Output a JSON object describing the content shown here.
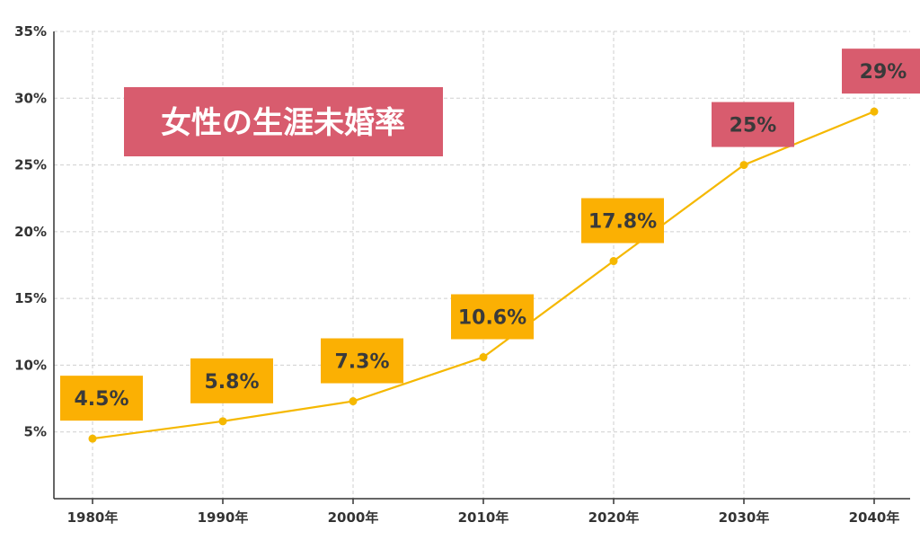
{
  "chart_data": {
    "type": "line",
    "title": "女性の生涯未婚率",
    "categories": [
      "1980年",
      "1990年",
      "2000年",
      "2010年",
      "2020年",
      "2030年",
      "2040年"
    ],
    "series": [
      {
        "values": [
          4.5,
          5.8,
          7.3,
          10.6,
          17.8,
          25,
          29
        ]
      }
    ],
    "data_labels": [
      "4.5%",
      "5.8%",
      "7.3%",
      "10.6%",
      "17.8%",
      "25%",
      "29%"
    ],
    "projected": [
      false,
      false,
      false,
      false,
      false,
      true,
      true
    ],
    "y_ticks": [
      5,
      10,
      15,
      20,
      25,
      30,
      35
    ],
    "y_tick_labels": [
      "5%",
      "10%",
      "15%",
      "20%",
      "25%",
      "30%",
      "35%"
    ],
    "ylim": [
      0,
      35
    ],
    "xlabel": "",
    "ylabel": "",
    "grid": true,
    "colors": {
      "line": "#f5b800",
      "label_actual": "#fbb003",
      "label_projected": "#d85c6e",
      "title_bg": "#d85c6e"
    }
  }
}
